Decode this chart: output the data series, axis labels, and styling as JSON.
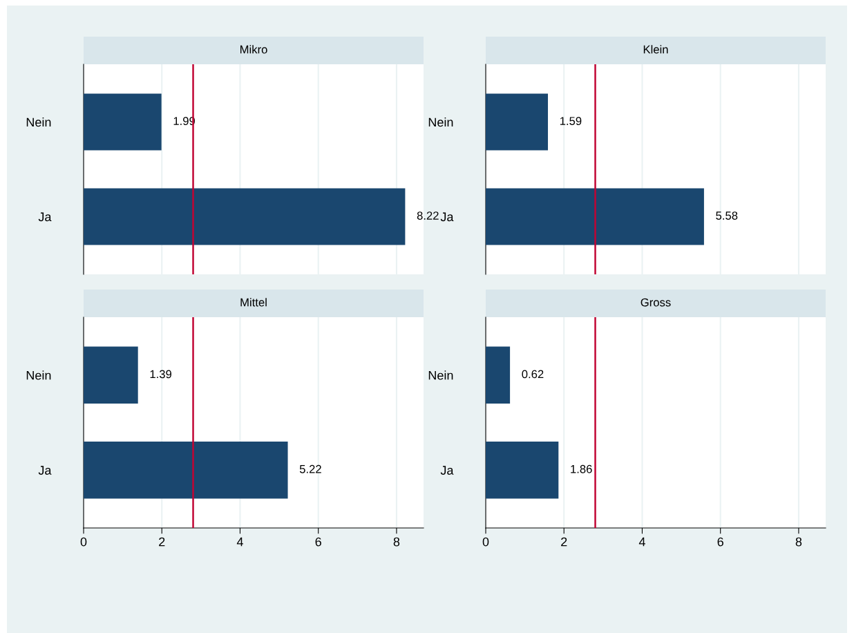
{
  "chart_data": [
    {
      "type": "bar",
      "title": "Mikro",
      "orientation": "horizontal",
      "categories": [
        "Nein",
        "Ja"
      ],
      "values": [
        1.99,
        8.22
      ],
      "color": "#1a476f",
      "data_labels": true,
      "xlim": [
        0,
        8.69
      ],
      "xticks": [
        0,
        2,
        4,
        6,
        8
      ],
      "grid": "x",
      "tick_labels": "y",
      "ref_lines": [
        {
          "axis": "x",
          "value": 2.8,
          "color": "#c10534"
        }
      ]
    },
    {
      "type": "bar",
      "title": "Klein",
      "orientation": "horizontal",
      "categories": [
        "Nein",
        "Ja"
      ],
      "values": [
        1.59,
        5.58
      ],
      "color": "#1a476f",
      "data_labels": true,
      "xlim": [
        0,
        8.69
      ],
      "xticks": [
        0,
        2,
        4,
        6,
        8
      ],
      "grid": "x",
      "tick_labels": "y",
      "ref_lines": [
        {
          "axis": "x",
          "value": 2.8,
          "color": "#c10534"
        }
      ]
    },
    {
      "type": "bar",
      "title": "Mittel",
      "orientation": "horizontal",
      "categories": [
        "Nein",
        "Ja"
      ],
      "values": [
        1.39,
        5.22
      ],
      "color": "#1a476f",
      "data_labels": true,
      "xlim": [
        0,
        8.69
      ],
      "xticks": [
        0,
        2,
        4,
        6,
        8
      ],
      "grid": "x",
      "ref_lines": [
        {
          "axis": "x",
          "value": 2.8,
          "color": "#c10534"
        }
      ]
    },
    {
      "type": "bar",
      "title": "Gross",
      "orientation": "horizontal",
      "categories": [
        "Nein",
        "Ja"
      ],
      "values": [
        0.62,
        1.86
      ],
      "color": "#1a476f",
      "data_labels": true,
      "xlim": [
        0,
        8.69
      ],
      "xticks": [
        0,
        2,
        4,
        6,
        8
      ],
      "grid": "x",
      "ref_lines": [
        {
          "axis": "x",
          "value": 2.8,
          "color": "#c10534"
        }
      ]
    }
  ]
}
